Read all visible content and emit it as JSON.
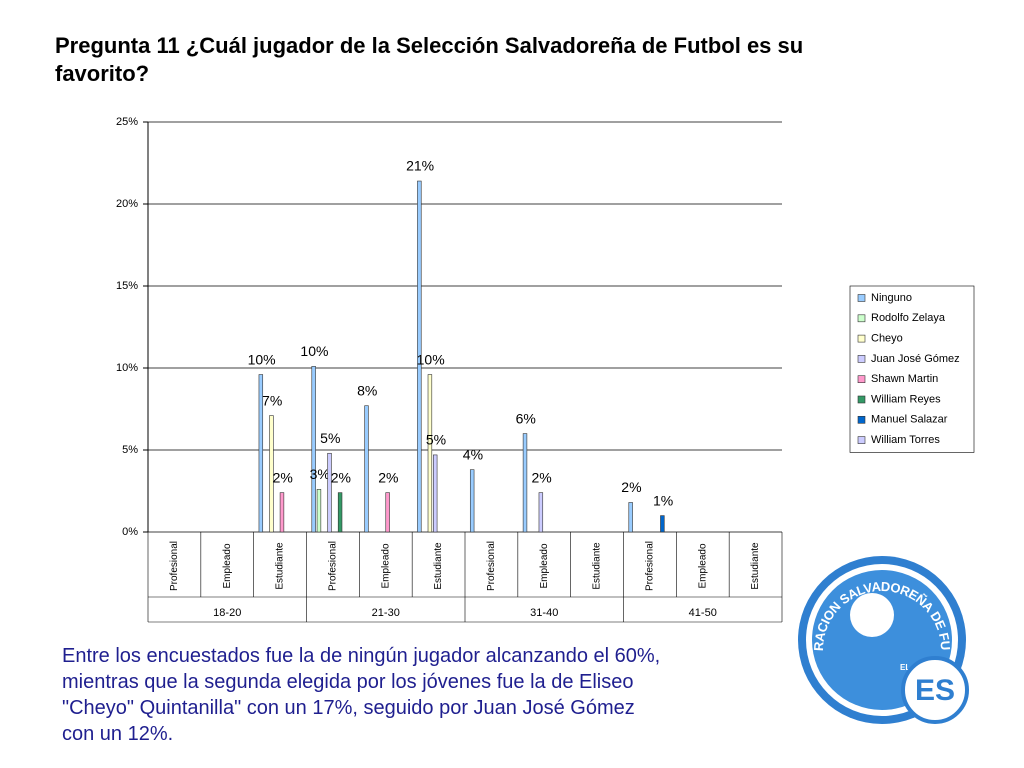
{
  "title": "Pregunta 11 ¿Cuál jugador de la Selección Salvadoreña de Futbol es su favorito?",
  "chart_data": {
    "type": "bar",
    "categories": [
      "Profesional",
      "Empleado",
      "Estudiante",
      "Profesional",
      "Empleado",
      "Estudiante",
      "Profesional",
      "Empleado",
      "Estudiante",
      "Profesional",
      "Empleado",
      "Estudiante"
    ],
    "groups": [
      "18-20",
      "21-30",
      "31-40",
      "41-50"
    ],
    "series": [
      {
        "name": "Ninguno",
        "color": "#99ccff",
        "values": [
          0,
          0,
          9.6,
          10.1,
          7.7,
          21.4,
          3.8,
          6.0,
          0,
          1.8,
          0,
          0
        ],
        "value_labels": [
          null,
          null,
          "10%",
          "10%",
          "8%",
          "21%",
          "4%",
          "6%",
          null,
          "2%",
          null,
          null
        ]
      },
      {
        "name": "Rodolfo Zelaya",
        "color": "#ccffcc",
        "values": [
          0,
          0,
          0,
          2.6,
          0,
          0,
          0,
          0,
          0,
          0,
          0,
          0
        ],
        "value_labels": [
          null,
          null,
          null,
          "3%",
          null,
          null,
          null,
          null,
          null,
          null,
          null,
          null
        ]
      },
      {
        "name": "Cheyo",
        "color": "#ffffcc",
        "values": [
          0,
          0,
          7.1,
          0,
          0,
          9.6,
          0,
          0,
          0,
          0,
          0,
          0
        ],
        "value_labels": [
          null,
          null,
          "7%",
          null,
          null,
          "10%",
          null,
          null,
          null,
          null,
          null,
          null
        ]
      },
      {
        "name": "Juan José Gómez",
        "color": "#ccccff",
        "values": [
          0,
          0,
          0,
          4.8,
          0,
          4.7,
          0,
          2.4,
          0,
          0,
          0,
          0
        ],
        "value_labels": [
          null,
          null,
          null,
          "5%",
          null,
          "5%",
          null,
          "2%",
          null,
          null,
          null,
          null
        ]
      },
      {
        "name": "Shawn Martin",
        "color": "#ff99cc",
        "values": [
          0,
          0,
          2.4,
          0,
          2.4,
          0,
          0,
          0,
          0,
          0,
          0,
          0
        ],
        "value_labels": [
          null,
          null,
          "2%",
          null,
          "2%",
          null,
          null,
          null,
          null,
          null,
          null,
          null
        ]
      },
      {
        "name": "William Reyes",
        "color": "#339966",
        "values": [
          0,
          0,
          0,
          2.4,
          0,
          0,
          0,
          0,
          0,
          0,
          0,
          0
        ],
        "value_labels": [
          null,
          null,
          null,
          "2%",
          null,
          null,
          null,
          null,
          null,
          null,
          null,
          null
        ]
      },
      {
        "name": "Manuel Salazar",
        "color": "#0066cc",
        "values": [
          0,
          0,
          0,
          0,
          0,
          0,
          0,
          0,
          0,
          1.0,
          0,
          0
        ],
        "value_labels": [
          null,
          null,
          null,
          null,
          null,
          null,
          null,
          null,
          null,
          "1%",
          null,
          null
        ]
      },
      {
        "name": "William Torres",
        "color": "#ccccff",
        "values": [
          0,
          0,
          0,
          0,
          0,
          0,
          0,
          0,
          0,
          0,
          0,
          0
        ],
        "value_labels": [
          null,
          null,
          null,
          null,
          null,
          null,
          null,
          null,
          null,
          null,
          null,
          null
        ]
      }
    ],
    "ylim": [
      0,
      25
    ],
    "yticks": [
      {
        "value": 0,
        "label": "0%"
      },
      {
        "value": 5,
        "label": "5%"
      },
      {
        "value": 10,
        "label": "10%"
      },
      {
        "value": 15,
        "label": "15%"
      },
      {
        "value": 20,
        "label": "20%"
      },
      {
        "value": 25,
        "label": "25%"
      }
    ],
    "grid": true,
    "legend": "right"
  },
  "body_lines": [
    "Entre los encuestados fue la de ningún jugador alcanzando el 60%,",
    "mientras que la segunda elegida por los jóvenes fue la de Eliseo",
    "\"Cheyo\" Quintanilla\" con un 17%, seguido por Juan José Gómez",
    "con un 12%."
  ],
  "logo": {
    "ring_text": "FEDERACION SALVADOREÑA DE FUTBOL",
    "country": "EL SALVADOR",
    "initials": "ES"
  }
}
